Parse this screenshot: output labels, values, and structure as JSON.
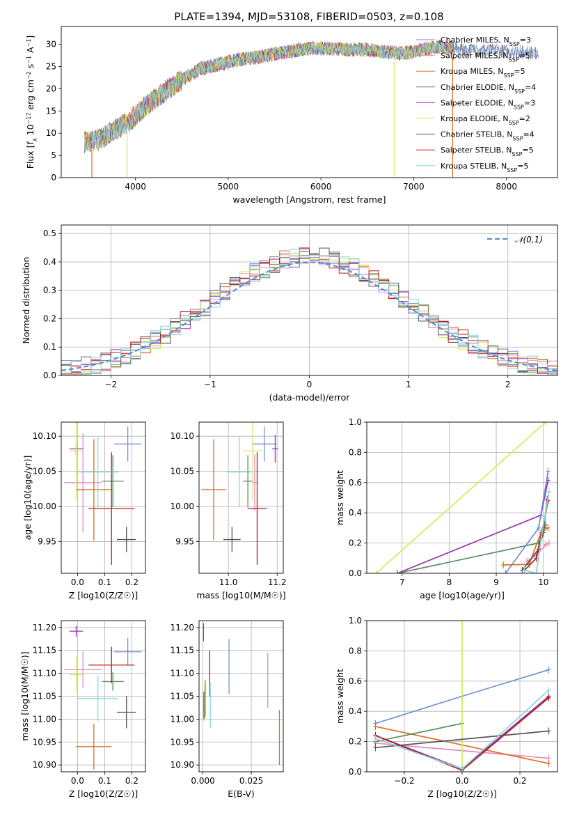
{
  "title": "PLATE=1394, MJD=53108, FIBERID=0503, z=0.108",
  "colors": {
    "chabrier_miles": "#6f8fd4",
    "salpeter_miles": "#e589c0",
    "kroupa_miles": "#dd6f1f",
    "chabrier_elodie": "#5b8a5f",
    "salpeter_elodie": "#9a34b0",
    "kroupa_elodie": "#d6ea58",
    "chabrier_stelib": "#555555",
    "salpeter_stelib": "#b21d1d",
    "kroupa_stelib": "#86d6dd",
    "normal": "#5a8fd6"
  },
  "chart_data": [
    {
      "id": "spectrum",
      "type": "line",
      "xlabel": "wavelength [Angstrom, rest frame]",
      "ylabel": "Flux [f_λ 10^-17 erg cm^-2 s^-1 A^-1]",
      "xlim": [
        3200,
        8550
      ],
      "ylim": [
        0,
        34
      ],
      "xticks": [
        4000,
        5000,
        6000,
        7000,
        8000
      ],
      "yticks": [
        0,
        5,
        10,
        15,
        20,
        25,
        30
      ],
      "legend_position": "right",
      "legend": [
        "Chabrier MILES, N_SSP=3",
        "Salpeter MILES, N_SSP=5",
        "Kroupa MILES, N_SSP=5",
        "Chabrier ELODIE, N_SSP=4",
        "Salpeter ELODIE, N_SSP=3",
        "Kroupa ELODIE, N_SSP=2",
        "Chabrier STELIB, N_SSP=4",
        "Salpeter STELIB, N_SSP=5",
        "Kroupa STELIB, N_SSP=5"
      ],
      "continuum": {
        "x": [
          3450,
          3600,
          3800,
          3950,
          4100,
          4300,
          4500,
          4700,
          4900,
          5100,
          5300,
          5500,
          5700,
          5900,
          6100,
          6300,
          6500,
          6700,
          6900,
          7100,
          7300,
          7450
        ],
        "y": [
          8,
          8.5,
          11,
          13,
          16,
          19,
          22,
          24.5,
          25.5,
          26.5,
          27,
          27.8,
          28.5,
          29.2,
          29,
          28.8,
          28.8,
          28.2,
          28,
          28.8,
          29.5,
          29
        ]
      },
      "extended_range": {
        "x_end": 8350,
        "y_end": 28
      },
      "drops": [
        {
          "x": 3530,
          "series": "kroupa_miles"
        },
        {
          "x": 3910,
          "series": "kroupa_elodie"
        },
        {
          "x": 6790,
          "series": "kroupa_elodie"
        },
        {
          "x": 7420,
          "series": "kroupa_miles"
        }
      ]
    },
    {
      "id": "residuals",
      "type": "histogram",
      "xlabel": "(data-model)/error",
      "ylabel": "Normed distribution",
      "xlim": [
        -2.5,
        2.5
      ],
      "ylim": [
        0,
        0.53
      ],
      "xticks": [
        -2,
        -1,
        0,
        1,
        2
      ],
      "yticks": [
        0,
        0.1,
        0.2,
        0.3,
        0.4,
        0.5
      ],
      "bin_width": 0.1,
      "legend": [
        "𝒩(0,1)"
      ],
      "legend_position": "top-right",
      "reference_curve": "normal(0,1) pdf"
    },
    {
      "id": "age_vs_Z",
      "type": "errorbar",
      "xlabel": "Z [log10(Z/Z☉)]",
      "ylabel": "age [log10(age/yr)]",
      "xlim": [
        -0.06,
        0.25
      ],
      "ylim": [
        9.905,
        10.12
      ],
      "xticks": [
        0.0,
        0.1,
        0.2
      ],
      "yticks": [
        9.95,
        10.0,
        10.05,
        10.1
      ],
      "points": [
        {
          "s": "chabrier_miles",
          "x": 0.185,
          "y": 10.089,
          "xe": 0.05,
          "ye": 0.025
        },
        {
          "s": "salpeter_miles",
          "x": 0.02,
          "y": 10.034,
          "xe": 0.07,
          "ye": 0.07
        },
        {
          "s": "kroupa_miles",
          "x": 0.06,
          "y": 10.024,
          "xe": 0.065,
          "ye": 0.072
        },
        {
          "s": "chabrier_elodie",
          "x": 0.13,
          "y": 10.036,
          "xe": 0.04,
          "ye": 0.037
        },
        {
          "s": "salpeter_elodie",
          "x": -0.005,
          "y": 10.082,
          "xe": 0.025,
          "ye": 0.008
        },
        {
          "s": "kroupa_elodie",
          "x": -0.005,
          "y": 10.079,
          "xe": 0.025,
          "ye": 0.07
        },
        {
          "s": "chabrier_stelib",
          "x": 0.18,
          "y": 9.953,
          "xe": 0.035,
          "ye": 0.018
        },
        {
          "s": "salpeter_stelib",
          "x": 0.125,
          "y": 9.997,
          "xe": 0.085,
          "ye": 0.08
        },
        {
          "s": "kroupa_stelib",
          "x": 0.075,
          "y": 10.049,
          "xe": 0.075,
          "ye": 0.05
        }
      ]
    },
    {
      "id": "age_vs_mass",
      "type": "errorbar",
      "xlabel": "mass [log10(M/M☉)]",
      "ylabel": "",
      "xlim": [
        10.88,
        11.225
      ],
      "ylim": [
        9.905,
        10.12
      ],
      "xticks": [
        11.0,
        11.2
      ],
      "yticks": [
        9.95,
        10.0,
        10.05,
        10.1
      ],
      "points": [
        {
          "s": "chabrier_miles",
          "x": 11.147,
          "y": 10.089,
          "xe": 0.05,
          "ye": 0.025
        },
        {
          "s": "salpeter_miles",
          "x": 11.108,
          "y": 10.034,
          "xe": 0.01,
          "ye": 0.04
        },
        {
          "s": "kroupa_miles",
          "x": 10.94,
          "y": 10.024,
          "xe": 0.05,
          "ye": 0.072
        },
        {
          "s": "chabrier_elodie",
          "x": 11.08,
          "y": 10.036,
          "xe": 0.02,
          "ye": 0.037
        },
        {
          "s": "salpeter_elodie",
          "x": 11.192,
          "y": 10.082,
          "xe": 0.012,
          "ye": 0.02
        },
        {
          "s": "kroupa_elodie",
          "x": 11.1,
          "y": 10.079,
          "xe": 0.04,
          "ye": 0.07
        },
        {
          "s": "chabrier_stelib",
          "x": 11.015,
          "y": 9.953,
          "xe": 0.035,
          "ye": 0.018
        },
        {
          "s": "salpeter_stelib",
          "x": 11.118,
          "y": 9.997,
          "xe": 0.04,
          "ye": 0.08
        },
        {
          "s": "kroupa_stelib",
          "x": 11.045,
          "y": 10.049,
          "xe": 0.05,
          "ye": 0.05
        }
      ]
    },
    {
      "id": "weight_vs_age",
      "type": "line",
      "xlabel": "age [log10(age/yr)]",
      "ylabel": "mass weight",
      "xlim": [
        6.25,
        10.3
      ],
      "ylim": [
        0,
        1.0
      ],
      "xticks": [
        7,
        8,
        9,
        10
      ],
      "yticks": [
        0.0,
        0.2,
        0.4,
        0.6,
        0.8,
        1.0
      ],
      "series": [
        {
          "s": "kroupa_elodie",
          "x": [
            6.45,
            10.05
          ],
          "y": [
            0.0,
            1.0
          ]
        },
        {
          "s": "salpeter_elodie",
          "x": [
            6.9,
            9.95,
            10.1
          ],
          "y": [
            0.0,
            0.385,
            0.615
          ]
        },
        {
          "s": "chabrier_elodie",
          "x": [
            6.9,
            9.9,
            10.05
          ],
          "y": [
            0.0,
            0.2,
            0.32
          ]
        },
        {
          "s": "chabrier_miles",
          "x": [
            9.2,
            9.9,
            10.1
          ],
          "y": [
            0.0,
            0.3,
            0.675
          ]
        },
        {
          "s": "kroupa_miles",
          "x": [
            9.15,
            9.7,
            9.95,
            10.1
          ],
          "y": [
            0.055,
            0.06,
            0.27,
            0.3
          ]
        },
        {
          "s": "salpeter_miles",
          "x": [
            9.65,
            9.85,
            10.05,
            10.12
          ],
          "y": [
            0.08,
            0.12,
            0.19,
            0.2
          ]
        },
        {
          "s": "chabrier_stelib",
          "x": [
            9.55,
            9.9,
            10.0,
            10.08
          ],
          "y": [
            0.02,
            0.16,
            0.27,
            0.49
          ]
        },
        {
          "s": "salpeter_stelib",
          "x": [
            9.6,
            9.85,
            9.95,
            10.1
          ],
          "y": [
            0.02,
            0.1,
            0.24,
            0.48
          ]
        },
        {
          "s": "kroupa_stelib",
          "x": [
            9.6,
            9.85,
            9.95,
            10.12
          ],
          "y": [
            0.02,
            0.0,
            0.22,
            0.54
          ]
        }
      ]
    },
    {
      "id": "mass_vs_Z",
      "type": "errorbar",
      "xlabel": "Z [log10(Z/Z☉)]",
      "ylabel": "mass [log10(M/M☉)]",
      "xlim": [
        -0.06,
        0.25
      ],
      "ylim": [
        10.885,
        11.215
      ],
      "xticks": [
        0.0,
        0.1,
        0.2
      ],
      "yticks": [
        10.9,
        10.95,
        11.0,
        11.05,
        11.1,
        11.15,
        11.2
      ],
      "points": [
        {
          "s": "chabrier_miles",
          "x": 0.185,
          "y": 11.147,
          "xe": 0.05,
          "ye": 0.03
        },
        {
          "s": "salpeter_miles",
          "x": 0.02,
          "y": 11.108,
          "xe": 0.07,
          "ye": 0.04
        },
        {
          "s": "kroupa_miles",
          "x": 0.06,
          "y": 10.94,
          "xe": 0.065,
          "ye": 0.05
        },
        {
          "s": "chabrier_elodie",
          "x": 0.13,
          "y": 11.082,
          "xe": 0.04,
          "ye": 0.02
        },
        {
          "s": "salpeter_elodie",
          "x": -0.005,
          "y": 11.192,
          "xe": 0.025,
          "ye": 0.012
        },
        {
          "s": "kroupa_elodie",
          "x": -0.005,
          "y": 11.097,
          "xe": 0.025,
          "ye": 0.04
        },
        {
          "s": "chabrier_stelib",
          "x": 0.18,
          "y": 11.015,
          "xe": 0.035,
          "ye": 0.035
        },
        {
          "s": "salpeter_stelib",
          "x": 0.125,
          "y": 11.118,
          "xe": 0.085,
          "ye": 0.04
        },
        {
          "s": "kroupa_stelib",
          "x": 0.075,
          "y": 11.045,
          "xe": 0.075,
          "ye": 0.05
        }
      ]
    },
    {
      "id": "mass_vs_ebv",
      "type": "errorbar",
      "xlabel": "E(B-V)",
      "ylabel": "",
      "xlim": [
        -0.002,
        0.0415
      ],
      "ylim": [
        10.885,
        11.215
      ],
      "xticks": [
        0.0,
        0.025
      ],
      "xtick_labels": [
        "0.000",
        "0.025"
      ],
      "yticks": [
        10.9,
        10.95,
        11.0,
        11.05,
        11.1,
        11.15,
        11.2
      ],
      "points": [
        {
          "s": "chabrier_miles",
          "x": 0.0135,
          "y": 11.115,
          "xe": 0,
          "ye": 0.06
        },
        {
          "s": "salpeter_miles",
          "x": 0.0335,
          "y": 11.085,
          "xe": 0,
          "ye": 0.06
        },
        {
          "s": "kroupa_miles",
          "x": 0.0395,
          "y": 10.96,
          "xe": 0,
          "ye": 0.06
        },
        {
          "s": "chabrier_elodie",
          "x": 0.0012,
          "y": 11.045,
          "xe": 0,
          "ye": 0.04
        },
        {
          "s": "salpeter_elodie",
          "x": 0.0003,
          "y": 11.19,
          "xe": 0,
          "ye": 0.02
        },
        {
          "s": "kroupa_elodie",
          "x": 0.0008,
          "y": 11.035,
          "xe": 0,
          "ye": 0.04
        },
        {
          "s": "chabrier_stelib",
          "x": 0.0005,
          "y": 11.03,
          "xe": 0,
          "ye": 0.03
        },
        {
          "s": "salpeter_stelib",
          "x": 0.0035,
          "y": 11.1,
          "xe": 0,
          "ye": 0.05
        },
        {
          "s": "kroupa_stelib",
          "x": 0.0038,
          "y": 11.03,
          "xe": 0,
          "ye": 0.05
        }
      ]
    },
    {
      "id": "weight_vs_Z",
      "type": "line",
      "xlabel": "Z [log10(Z/Z☉)]",
      "ylabel": "mass weight",
      "xlim": [
        -0.33,
        0.33
      ],
      "ylim": [
        0,
        1.0
      ],
      "xticks": [
        -0.2,
        0.0,
        0.2
      ],
      "yticks": [
        0.0,
        0.2,
        0.4,
        0.6,
        0.8,
        1.0
      ],
      "series": [
        {
          "s": "chabrier_miles",
          "x": [
            -0.3,
            0.0,
            0.3
          ],
          "y": [
            0.32,
            0.5,
            0.675
          ]
        },
        {
          "s": "salpeter_miles",
          "x": [
            -0.3,
            0.3
          ],
          "y": [
            0.19,
            0.09
          ]
        },
        {
          "s": "kroupa_miles",
          "x": [
            -0.3,
            0.3
          ],
          "y": [
            0.3,
            0.055
          ]
        },
        {
          "s": "chabrier_elodie",
          "x": [
            -0.3,
            0.0
          ],
          "y": [
            0.2,
            0.32
          ]
        },
        {
          "s": "salpeter_elodie",
          "x": [
            -0.3,
            0.0,
            0.3
          ],
          "y": [
            0.24,
            0.02,
            0.5
          ]
        },
        {
          "s": "kroupa_elodie",
          "x": [
            0.0,
            0.0
          ],
          "y": [
            0.0,
            1.0
          ]
        },
        {
          "s": "chabrier_stelib",
          "x": [
            -0.3,
            0.3
          ],
          "y": [
            0.16,
            0.27
          ]
        },
        {
          "s": "salpeter_stelib",
          "x": [
            -0.3,
            0.0,
            0.3
          ],
          "y": [
            0.24,
            0.01,
            0.49
          ]
        },
        {
          "s": "kroupa_stelib",
          "x": [
            -0.3,
            0.0,
            0.3
          ],
          "y": [
            0.22,
            0.02,
            0.54
          ]
        }
      ]
    }
  ]
}
